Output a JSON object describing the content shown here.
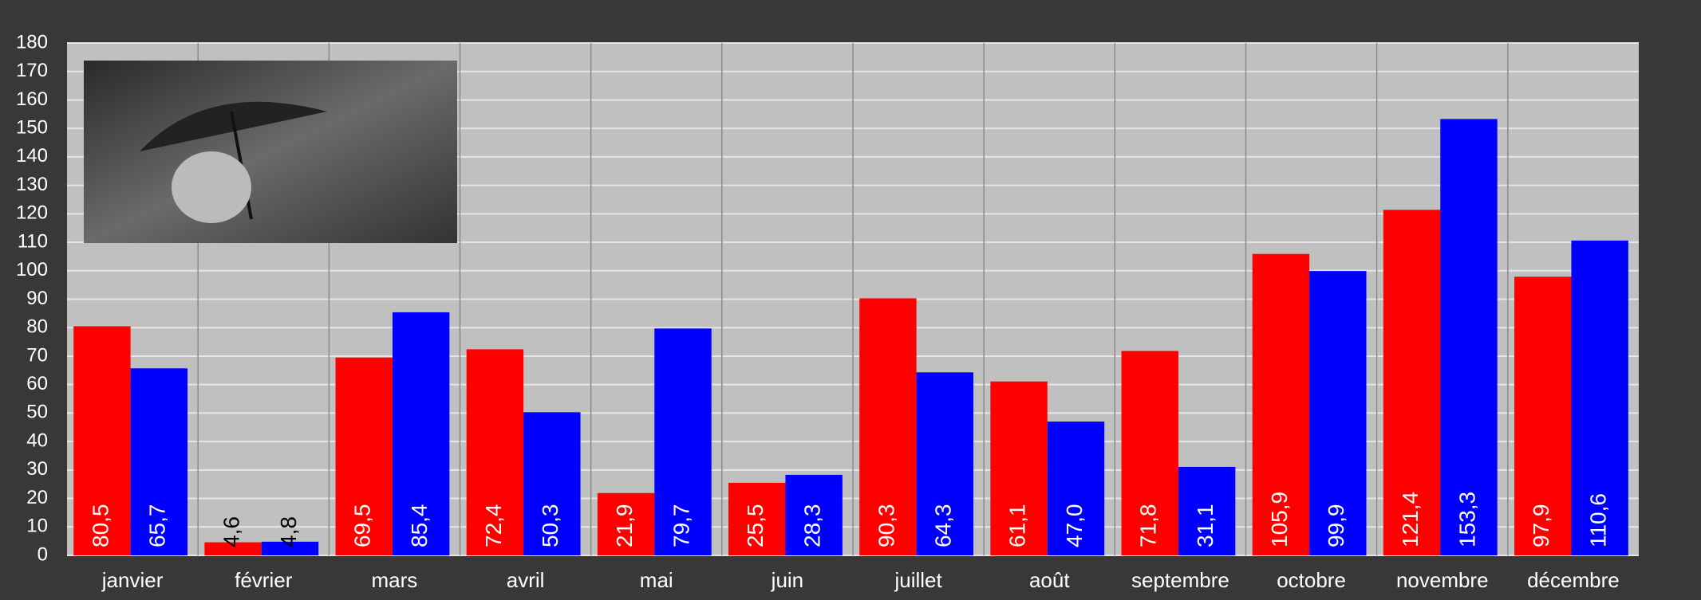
{
  "chart_data": {
    "type": "bar",
    "categories": [
      "janvier",
      "février",
      "mars",
      "avril",
      "mai",
      "juin",
      "juillet",
      "août",
      "septembre",
      "octobre",
      "novembre",
      "décembre"
    ],
    "series": [
      {
        "color": "#ff0000",
        "values": [
          80.5,
          4.6,
          69.5,
          72.4,
          21.9,
          25.5,
          90.3,
          61.1,
          71.8,
          105.9,
          121.4,
          97.9
        ],
        "value_labels": [
          "80,5",
          "4,6",
          "69,5",
          "72,4",
          "21,9",
          "25,5",
          "90,3",
          "61,1",
          "71,8",
          "105,9",
          "121,4",
          "97,9"
        ]
      },
      {
        "color": "#0000ff",
        "values": [
          65.7,
          4.8,
          85.4,
          50.3,
          79.7,
          28.3,
          64.3,
          47.0,
          31.1,
          99.9,
          153.3,
          110.6
        ],
        "value_labels": [
          "65,7",
          "4,8",
          "85,4",
          "50,3",
          "79,7",
          "28,3",
          "64,3",
          "47,0",
          "31,1",
          "99,9",
          "153,3",
          "110,6"
        ]
      }
    ],
    "ylim": [
      0,
      180
    ],
    "yticks": [
      0,
      10,
      20,
      30,
      40,
      50,
      60,
      70,
      80,
      90,
      100,
      110,
      120,
      130,
      140,
      150,
      160,
      170,
      180
    ],
    "grid": true
  }
}
